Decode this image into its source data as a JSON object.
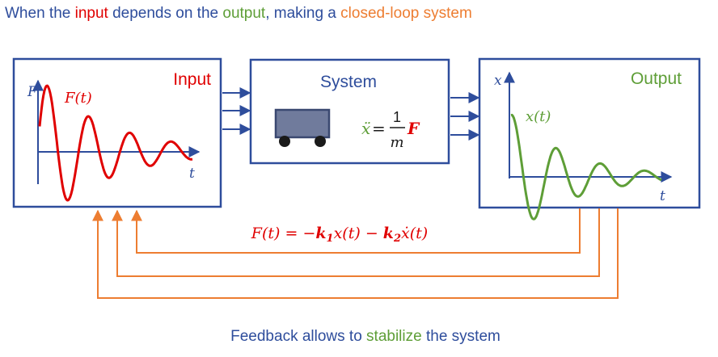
{
  "title": {
    "part1": "When the ",
    "input_word": "input",
    "part2": " depends on the ",
    "output_word": "output",
    "part3": ", making a ",
    "closed_loop": "closed-loop system"
  },
  "input_box": {
    "label": "Input",
    "axis_y": "F",
    "axis_x": "t",
    "curve_label": "F(t)"
  },
  "system_box": {
    "label": "System",
    "equation": {
      "lhs": "ẍ",
      "equals": "=",
      "numerator": "1",
      "denominator": "m",
      "force": "F"
    }
  },
  "output_box": {
    "label": "Output",
    "axis_y": "x",
    "axis_x": "t",
    "curve_label": "x(t)"
  },
  "feedback_law": {
    "lhs": "F(t)",
    "eq": " = −",
    "k1": "k",
    "k1_sub": "1",
    "x": "x(t)",
    "minus": " − ",
    "k2": "k",
    "k2_sub": "2",
    "xdot": "ẋ(t)"
  },
  "caption": {
    "part1": "Feedback allows to ",
    "stabilize": "stabilize",
    "part2": " the system"
  },
  "colors": {
    "blue": "#2e4d9c",
    "red": "#e00000",
    "green": "#5e9e37",
    "orange": "#ed7d31",
    "cart": "#707b9c"
  }
}
